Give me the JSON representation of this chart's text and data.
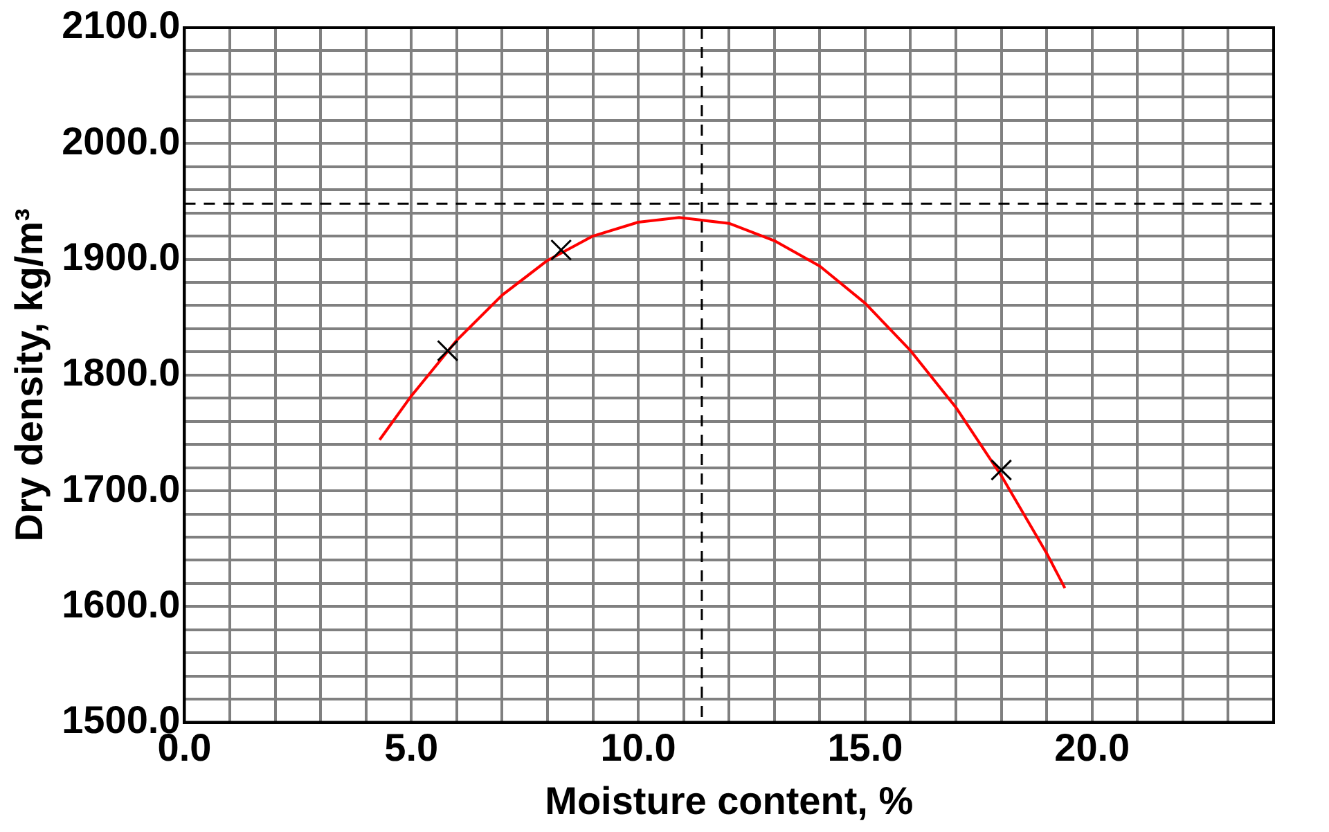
{
  "chart_data": {
    "type": "scatter",
    "xlabel": "Moisture content, %",
    "ylabel": "Dry density, kg/m³",
    "xlim": [
      0,
      24
    ],
    "ylim": [
      1500,
      2100
    ],
    "xticks": [
      {
        "value": 0,
        "label": "0.0"
      },
      {
        "value": 1,
        "label": null
      },
      {
        "value": 2,
        "label": null
      },
      {
        "value": 3,
        "label": null
      },
      {
        "value": 4,
        "label": null
      },
      {
        "value": 5,
        "label": "5.0"
      },
      {
        "value": 6,
        "label": null
      },
      {
        "value": 7,
        "label": null
      },
      {
        "value": 8,
        "label": null
      },
      {
        "value": 9,
        "label": null
      },
      {
        "value": 10,
        "label": "10.0"
      },
      {
        "value": 11,
        "label": null
      },
      {
        "value": 12,
        "label": null
      },
      {
        "value": 13,
        "label": null
      },
      {
        "value": 14,
        "label": null
      },
      {
        "value": 15,
        "label": "15.0"
      },
      {
        "value": 16,
        "label": null
      },
      {
        "value": 17,
        "label": null
      },
      {
        "value": 18,
        "label": null
      },
      {
        "value": 19,
        "label": null
      },
      {
        "value": 20,
        "label": "20.0"
      },
      {
        "value": 21,
        "label": null
      },
      {
        "value": 22,
        "label": null
      },
      {
        "value": 23,
        "label": null
      },
      {
        "value": 24,
        "label": null
      }
    ],
    "yticks": [
      {
        "value": 1500,
        "label": "1500.0"
      },
      {
        "value": 1520,
        "label": null
      },
      {
        "value": 1540,
        "label": null
      },
      {
        "value": 1560,
        "label": null
      },
      {
        "value": 1580,
        "label": null
      },
      {
        "value": 1600,
        "label": "1600.0"
      },
      {
        "value": 1620,
        "label": null
      },
      {
        "value": 1640,
        "label": null
      },
      {
        "value": 1660,
        "label": null
      },
      {
        "value": 1680,
        "label": null
      },
      {
        "value": 1700,
        "label": "1700.0"
      },
      {
        "value": 1720,
        "label": null
      },
      {
        "value": 1740,
        "label": null
      },
      {
        "value": 1760,
        "label": null
      },
      {
        "value": 1780,
        "label": null
      },
      {
        "value": 1800,
        "label": "1800.0"
      },
      {
        "value": 1820,
        "label": null
      },
      {
        "value": 1840,
        "label": null
      },
      {
        "value": 1860,
        "label": null
      },
      {
        "value": 1880,
        "label": null
      },
      {
        "value": 1900,
        "label": "1900.0"
      },
      {
        "value": 1920,
        "label": null
      },
      {
        "value": 1940,
        "label": null
      },
      {
        "value": 1960,
        "label": null
      },
      {
        "value": 1980,
        "label": null
      },
      {
        "value": 2000,
        "label": "2000.0"
      },
      {
        "value": 2020,
        "label": null
      },
      {
        "value": 2040,
        "label": null
      },
      {
        "value": 2060,
        "label": null
      },
      {
        "value": 2080,
        "label": null
      },
      {
        "value": 2100,
        "label": "2100.0"
      }
    ],
    "grid": true,
    "series": [
      {
        "color": "#000000",
        "marker": "cross",
        "x": [
          5.8,
          8.3,
          18.0
        ],
        "values": [
          1821,
          1908,
          1718
        ]
      },
      {
        "type": "line",
        "color": "#ff0000",
        "marker": "none",
        "x": [
          4.3,
          5,
          6,
          7,
          8,
          9,
          10,
          10.9,
          12,
          13,
          14,
          15,
          16,
          17,
          18,
          19,
          19.4
        ],
        "values": [
          1744,
          1782,
          1830,
          1869,
          1899,
          1920,
          1932,
          1936,
          1931,
          1916,
          1894,
          1862,
          1821,
          1772,
          1713,
          1646,
          1616
        ]
      }
    ],
    "ref_lines": [
      {
        "axis": "x",
        "value": 11.4,
        "line_style": "dashed",
        "color": "#000000"
      },
      {
        "axis": "y",
        "value": 1948,
        "line_style": "dashed",
        "color": "#000000"
      }
    ]
  }
}
